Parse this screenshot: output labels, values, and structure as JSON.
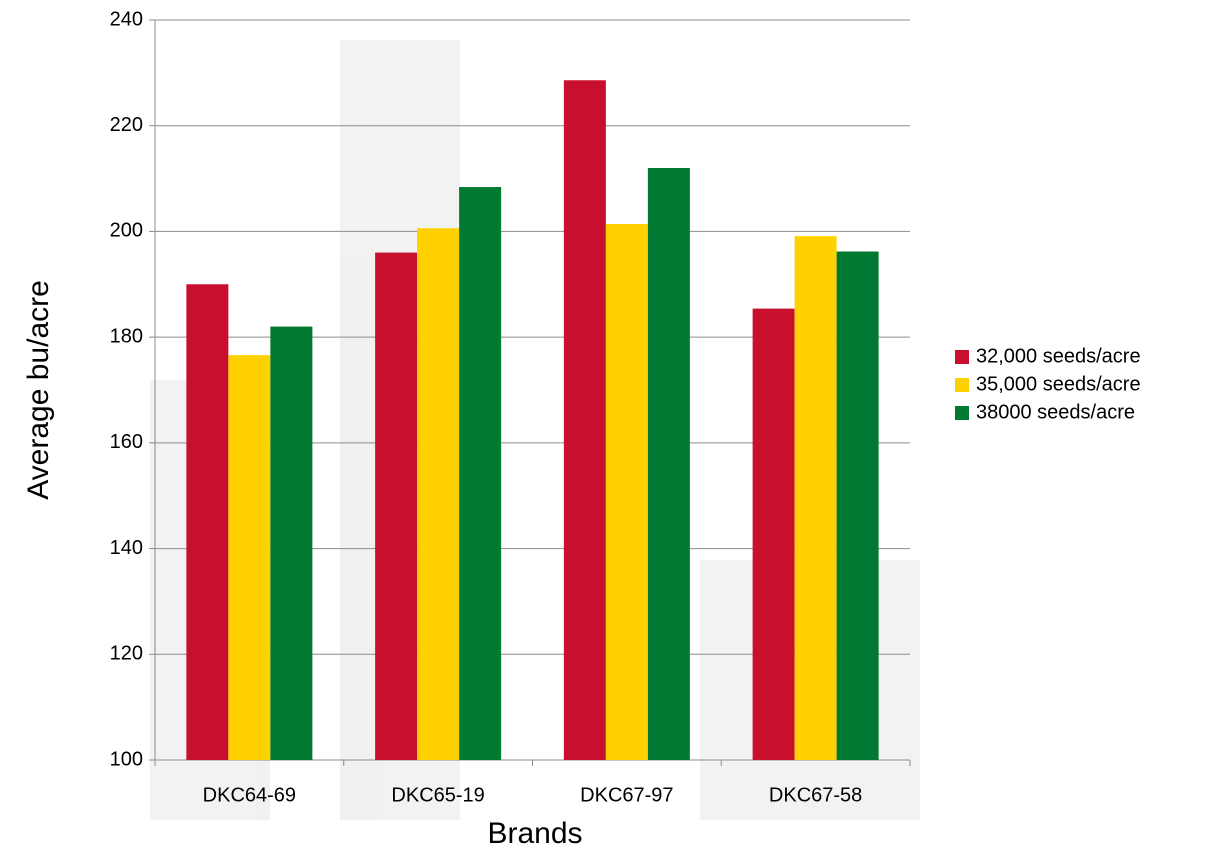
{
  "chart_data": {
    "type": "bar",
    "x_label": "Brands",
    "y_label": "Average bu/acre",
    "categories": [
      "DKC64-69",
      "DKC65-19",
      "DKC67-97",
      "DKC67-58"
    ],
    "series": [
      {
        "name": "32,000 seeds/acre",
        "color": "#c8102e",
        "values": [
          190,
          196,
          228.6,
          185.4
        ]
      },
      {
        "name": "35,000 seeds/acre",
        "color": "#ffd100",
        "values": [
          176.6,
          200.6,
          201.4,
          199.1
        ]
      },
      {
        "name": "38000 seeds/acre",
        "color": "#007a33",
        "values": [
          182,
          208.4,
          212,
          196.2
        ]
      }
    ],
    "ylim": [
      100,
      240
    ],
    "yticks": [
      100,
      120,
      140,
      160,
      180,
      200,
      220,
      240
    ],
    "grid": true,
    "legend": "right"
  }
}
